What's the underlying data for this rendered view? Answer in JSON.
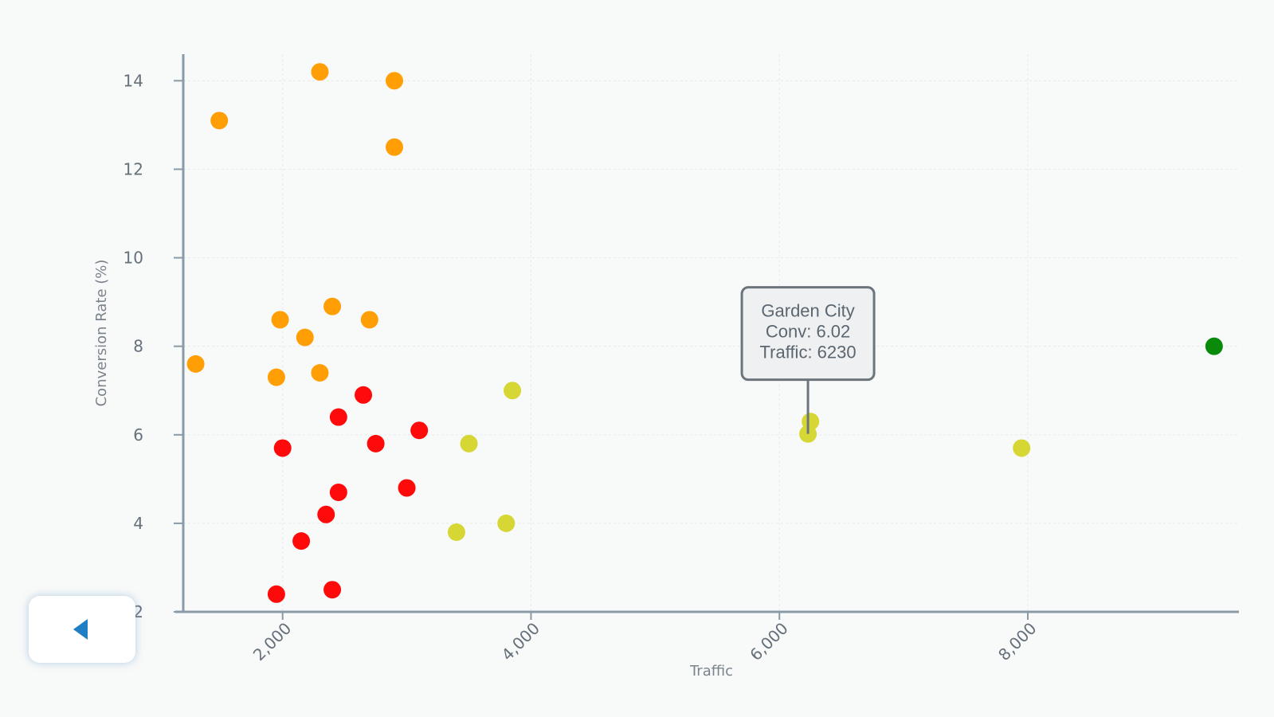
{
  "chart_data": {
    "type": "scatter",
    "xlabel": "Traffic",
    "ylabel": "Conversion Rate (%)",
    "xlim": [
      1200,
      9700
    ],
    "ylim": [
      2,
      14.6
    ],
    "x_ticks": [
      2000,
      4000,
      6000,
      8000
    ],
    "x_tick_labels": [
      "2,000",
      "4,000",
      "6,000",
      "8,000"
    ],
    "y_ticks": [
      2,
      4,
      6,
      8,
      10,
      12,
      14
    ],
    "y_tick_labels": [
      "2",
      "4",
      "6",
      "8",
      "10",
      "12",
      "14"
    ],
    "grid": true,
    "legend": "none",
    "colors": {
      "red": "#ff0a0a",
      "orange": "#ff9f05",
      "yellow": "#d6d634",
      "green": "#0a8a0a"
    },
    "points": [
      {
        "x": 1490,
        "y": 13.1,
        "color": "orange"
      },
      {
        "x": 2300,
        "y": 14.2,
        "color": "orange"
      },
      {
        "x": 2900,
        "y": 14.0,
        "color": "orange"
      },
      {
        "x": 2900,
        "y": 12.5,
        "color": "orange"
      },
      {
        "x": 1300,
        "y": 7.6,
        "color": "orange"
      },
      {
        "x": 1980,
        "y": 8.6,
        "color": "orange"
      },
      {
        "x": 2180,
        "y": 8.2,
        "color": "orange"
      },
      {
        "x": 2400,
        "y": 8.9,
        "color": "orange"
      },
      {
        "x": 2700,
        "y": 8.6,
        "color": "orange"
      },
      {
        "x": 1950,
        "y": 7.3,
        "color": "orange"
      },
      {
        "x": 2300,
        "y": 7.4,
        "color": "orange"
      },
      {
        "x": 2650,
        "y": 6.9,
        "color": "red"
      },
      {
        "x": 2450,
        "y": 6.4,
        "color": "red"
      },
      {
        "x": 3100,
        "y": 6.1,
        "color": "red"
      },
      {
        "x": 2000,
        "y": 5.7,
        "color": "red"
      },
      {
        "x": 2750,
        "y": 5.8,
        "color": "red"
      },
      {
        "x": 2450,
        "y": 4.7,
        "color": "red"
      },
      {
        "x": 3000,
        "y": 4.8,
        "color": "red"
      },
      {
        "x": 2350,
        "y": 4.2,
        "color": "red"
      },
      {
        "x": 2150,
        "y": 3.6,
        "color": "red"
      },
      {
        "x": 2400,
        "y": 2.5,
        "color": "red"
      },
      {
        "x": 1950,
        "y": 2.4,
        "color": "red"
      },
      {
        "x": 3850,
        "y": 7.0,
        "color": "yellow"
      },
      {
        "x": 3500,
        "y": 5.8,
        "color": "yellow"
      },
      {
        "x": 3800,
        "y": 4.0,
        "color": "yellow"
      },
      {
        "x": 3400,
        "y": 3.8,
        "color": "yellow"
      },
      {
        "x": 6250,
        "y": 6.3,
        "color": "yellow"
      },
      {
        "x": 6230,
        "y": 6.02,
        "color": "yellow"
      },
      {
        "x": 7950,
        "y": 5.7,
        "color": "yellow"
      },
      {
        "x": 9500,
        "y": 8.0,
        "color": "green"
      }
    ],
    "tooltip": {
      "name": "Garden City",
      "conv_line": "Conv: 6.02",
      "traffic_line": "Traffic: 6230",
      "x": 6230,
      "y": 6.02
    }
  },
  "back_button": {
    "icon": "chevron-left-icon"
  }
}
